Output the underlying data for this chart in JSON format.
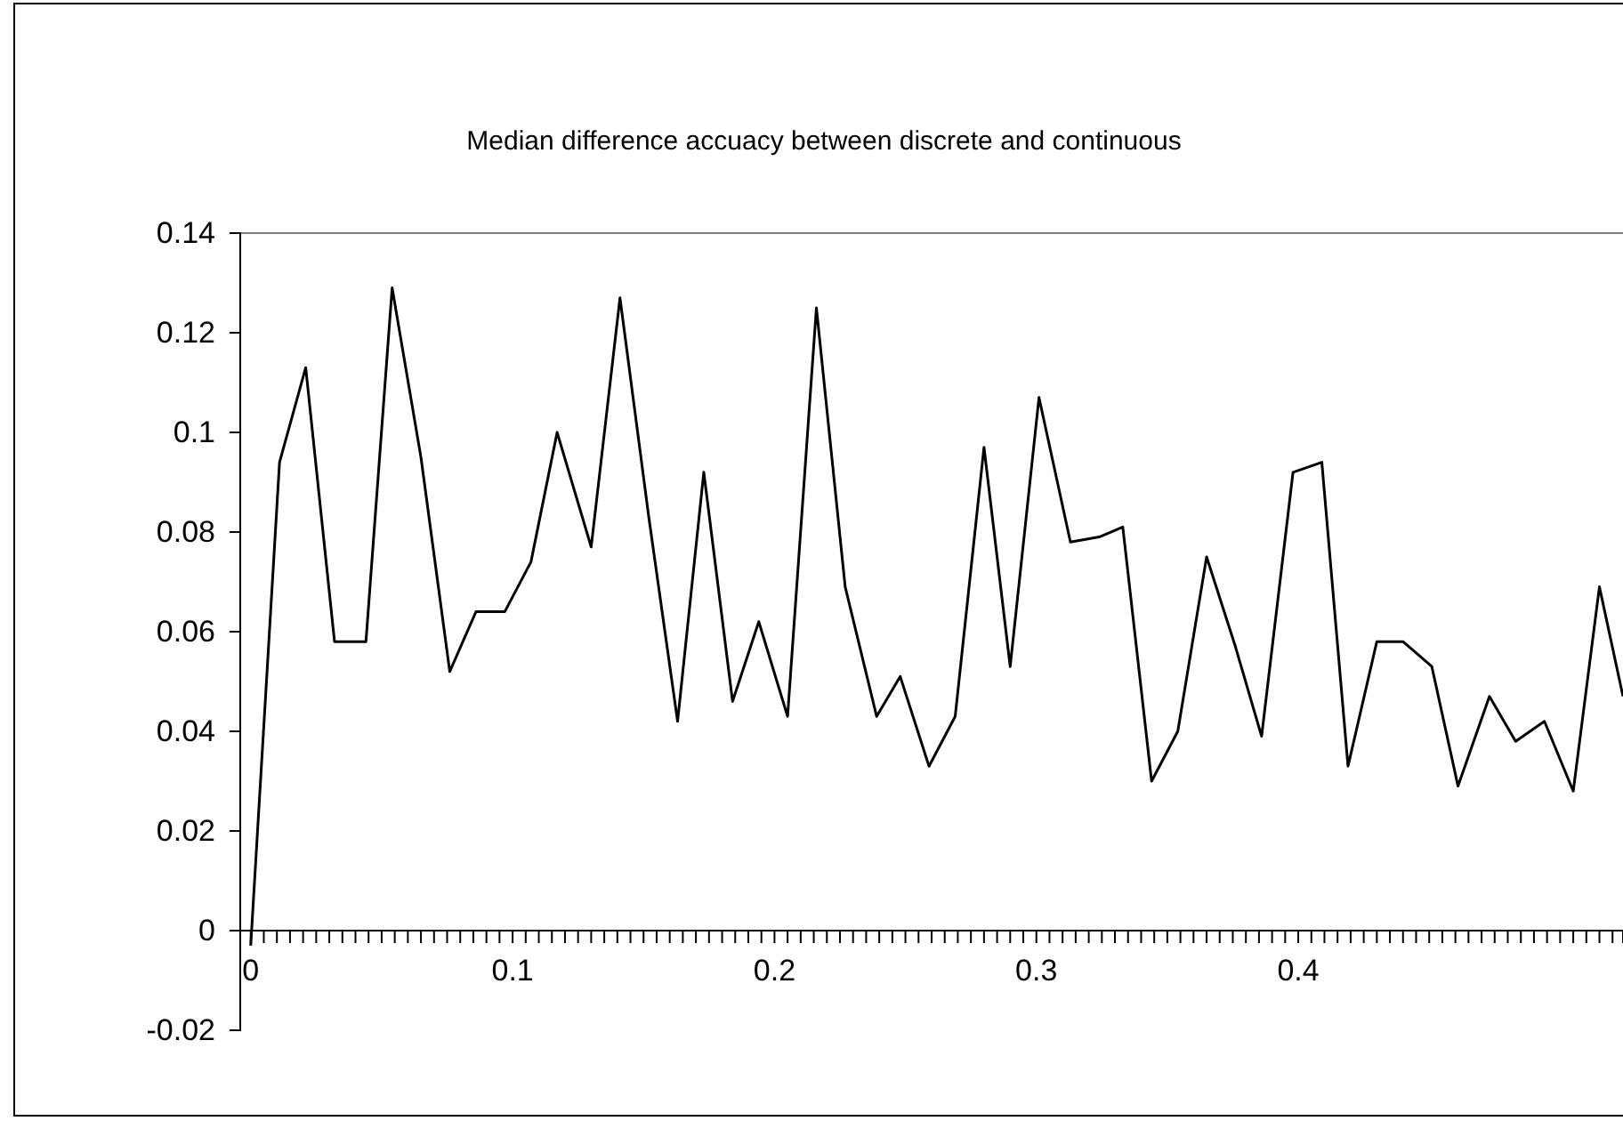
{
  "chart_data": {
    "type": "line",
    "title": "Median difference accuacy between discrete and continuous",
    "x": [
      0,
      0.011,
      0.021,
      0.032,
      0.044,
      0.054,
      0.065,
      0.076,
      0.086,
      0.097,
      0.107,
      0.117,
      0.13,
      0.141,
      0.152,
      0.163,
      0.173,
      0.184,
      0.194,
      0.205,
      0.216,
      0.227,
      0.239,
      0.248,
      0.259,
      0.269,
      0.28,
      0.29,
      0.301,
      0.313,
      0.324,
      0.333,
      0.344,
      0.354,
      0.365,
      0.376,
      0.386,
      0.398,
      0.409,
      0.419,
      0.43,
      0.44,
      0.451,
      0.461,
      0.473,
      0.483,
      0.494,
      0.505,
      0.515,
      0.524
    ],
    "series": [
      {
        "color": "#000000",
        "values": [
          -0.003,
          0.094,
          0.113,
          0.058,
          0.058,
          0.129,
          0.095,
          0.052,
          0.064,
          0.064,
          0.074,
          0.1,
          0.077,
          0.127,
          0.083,
          0.042,
          0.092,
          0.046,
          0.062,
          0.043,
          0.125,
          0.069,
          0.043,
          0.051,
          0.033,
          0.043,
          0.097,
          0.053,
          0.107,
          0.078,
          0.079,
          0.081,
          0.03,
          0.04,
          0.075,
          0.057,
          0.039,
          0.092,
          0.094,
          0.033,
          0.058,
          0.058,
          0.053,
          0.029,
          0.047,
          0.038,
          0.042,
          0.028,
          0.069,
          0.047
        ]
      }
    ],
    "xlim": [
      -0.004,
      0.524
    ],
    "xticks": [
      0,
      {
        "value": 0.005,
        "label": null
      },
      {
        "value": 0.01,
        "label": null
      },
      {
        "value": 0.015,
        "label": null
      },
      {
        "value": 0.02,
        "label": null
      },
      {
        "value": 0.025,
        "label": null
      },
      {
        "value": 0.03,
        "label": null
      },
      {
        "value": 0.035,
        "label": null
      },
      {
        "value": 0.04,
        "label": null
      },
      {
        "value": 0.045,
        "label": null
      },
      {
        "value": 0.05,
        "label": null
      },
      {
        "value": 0.055,
        "label": null
      },
      {
        "value": 0.06,
        "label": null
      },
      {
        "value": 0.065,
        "label": null
      },
      {
        "value": 0.07,
        "label": null
      },
      {
        "value": 0.075,
        "label": null
      },
      {
        "value": 0.08,
        "label": null
      },
      {
        "value": 0.085,
        "label": null
      },
      {
        "value": 0.09,
        "label": null
      },
      {
        "value": 0.095,
        "label": null
      },
      0.1,
      {
        "value": 0.105,
        "label": null
      },
      {
        "value": 0.11,
        "label": null
      },
      {
        "value": 0.115,
        "label": null
      },
      {
        "value": 0.12,
        "label": null
      },
      {
        "value": 0.125,
        "label": null
      },
      {
        "value": 0.13,
        "label": null
      },
      {
        "value": 0.135,
        "label": null
      },
      {
        "value": 0.14,
        "label": null
      },
      {
        "value": 0.145,
        "label": null
      },
      {
        "value": 0.15,
        "label": null
      },
      {
        "value": 0.155,
        "label": null
      },
      {
        "value": 0.16,
        "label": null
      },
      {
        "value": 0.165,
        "label": null
      },
      {
        "value": 0.17,
        "label": null
      },
      {
        "value": 0.175,
        "label": null
      },
      {
        "value": 0.18,
        "label": null
      },
      {
        "value": 0.185,
        "label": null
      },
      {
        "value": 0.19,
        "label": null
      },
      {
        "value": 0.195,
        "label": null
      },
      0.2,
      {
        "value": 0.205,
        "label": null
      },
      {
        "value": 0.21,
        "label": null
      },
      {
        "value": 0.215,
        "label": null
      },
      {
        "value": 0.22,
        "label": null
      },
      {
        "value": 0.225,
        "label": null
      },
      {
        "value": 0.23,
        "label": null
      },
      {
        "value": 0.235,
        "label": null
      },
      {
        "value": 0.24,
        "label": null
      },
      {
        "value": 0.245,
        "label": null
      },
      {
        "value": 0.25,
        "label": null
      },
      {
        "value": 0.255,
        "label": null
      },
      {
        "value": 0.26,
        "label": null
      },
      {
        "value": 0.265,
        "label": null
      },
      {
        "value": 0.27,
        "label": null
      },
      {
        "value": 0.275,
        "label": null
      },
      {
        "value": 0.28,
        "label": null
      },
      {
        "value": 0.285,
        "label": null
      },
      {
        "value": 0.29,
        "label": null
      },
      {
        "value": 0.295,
        "label": null
      },
      0.3,
      {
        "value": 0.305,
        "label": null
      },
      {
        "value": 0.31,
        "label": null
      },
      {
        "value": 0.315,
        "label": null
      },
      {
        "value": 0.32,
        "label": null
      },
      {
        "value": 0.325,
        "label": null
      },
      {
        "value": 0.33,
        "label": null
      },
      {
        "value": 0.335,
        "label": null
      },
      {
        "value": 0.34,
        "label": null
      },
      {
        "value": 0.345,
        "label": null
      },
      {
        "value": 0.35,
        "label": null
      },
      {
        "value": 0.355,
        "label": null
      },
      {
        "value": 0.36,
        "label": null
      },
      {
        "value": 0.365,
        "label": null
      },
      {
        "value": 0.37,
        "label": null
      },
      {
        "value": 0.375,
        "label": null
      },
      {
        "value": 0.38,
        "label": null
      },
      {
        "value": 0.385,
        "label": null
      },
      {
        "value": 0.39,
        "label": null
      },
      {
        "value": 0.395,
        "label": null
      },
      0.4,
      {
        "value": 0.405,
        "label": null
      },
      {
        "value": 0.41,
        "label": null
      },
      {
        "value": 0.415,
        "label": null
      },
      {
        "value": 0.42,
        "label": null
      },
      {
        "value": 0.425,
        "label": null
      },
      {
        "value": 0.43,
        "label": null
      },
      {
        "value": 0.435,
        "label": null
      },
      {
        "value": 0.44,
        "label": null
      },
      {
        "value": 0.445,
        "label": null
      },
      {
        "value": 0.45,
        "label": null
      },
      {
        "value": 0.455,
        "label": null
      },
      {
        "value": 0.46,
        "label": null
      },
      {
        "value": 0.465,
        "label": null
      },
      {
        "value": 0.47,
        "label": null
      },
      {
        "value": 0.475,
        "label": null
      },
      {
        "value": 0.48,
        "label": null
      },
      {
        "value": 0.485,
        "label": null
      },
      {
        "value": 0.49,
        "label": null
      },
      {
        "value": 0.495,
        "label": null
      },
      {
        "value": 0.5,
        "label": null
      },
      {
        "value": 0.505,
        "label": null
      },
      {
        "value": 0.51,
        "label": null
      },
      {
        "value": 0.515,
        "label": null
      },
      {
        "value": 0.52,
        "label": null
      }
    ],
    "ylim": [
      -0.02,
      0.14
    ],
    "yticks": [
      -0.02,
      0,
      0.02,
      0.04,
      0.06,
      0.08,
      0.1,
      0.12,
      0.14
    ],
    "marker": "none",
    "line_style": "solid"
  }
}
